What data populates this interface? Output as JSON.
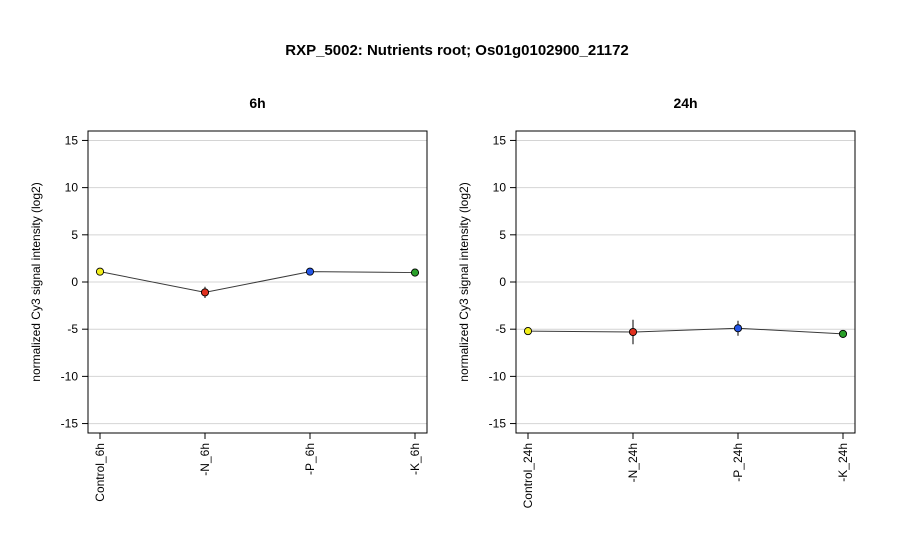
{
  "title": "RXP_5002: Nutrients root; Os01g0102900_21172",
  "chart_data": [
    {
      "type": "line",
      "title": "6h",
      "ylabel": "normalized Cy3 signal intensity (log2)",
      "ylim": [
        -16,
        16
      ],
      "yticks": [
        "15",
        "10",
        "5",
        "0",
        "-5",
        "-10",
        "-15"
      ],
      "grid": true,
      "categories": [
        "Control_6h",
        "-N_6h",
        "-P_6h",
        "-K_6h"
      ],
      "values": [
        1.1,
        -1.1,
        1.1,
        1.0
      ],
      "errors": [
        0.1,
        0.6,
        0.4,
        0.1
      ],
      "colors": [
        "#f2ee1a",
        "#e0301e",
        "#2456e8",
        "#2aa02a"
      ]
    },
    {
      "type": "line",
      "title": "24h",
      "ylabel": "normalized Cy3 signal intensity (log2)",
      "ylim": [
        -16,
        16
      ],
      "yticks": [
        "15",
        "10",
        "5",
        "0",
        "-5",
        "-10",
        "-15"
      ],
      "grid": true,
      "categories": [
        "Control_24h",
        "-N_24h",
        "-P_24h",
        "-K_24h"
      ],
      "values": [
        -5.2,
        -5.3,
        -4.9,
        -5.5
      ],
      "errors": [
        0.2,
        1.3,
        0.8,
        0.2
      ],
      "colors": [
        "#f2ee1a",
        "#e0301e",
        "#2456e8",
        "#2aa02a"
      ]
    }
  ]
}
